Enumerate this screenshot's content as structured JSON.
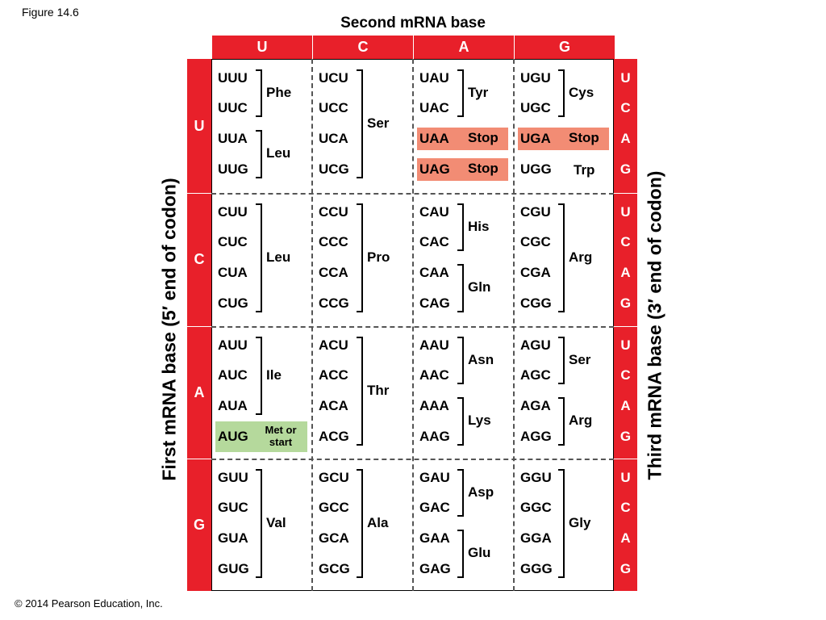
{
  "figure_label": "Figure 14.6",
  "second_title": "Second mRNA base",
  "first_title": "First mRNA base  (5′ end of codon)",
  "third_title": "Third mRNA base  (3′ end of codon)",
  "copyright": "© 2014 Pearson Education, Inc.",
  "bases": [
    "U",
    "C",
    "A",
    "G"
  ],
  "colors": {
    "header_red": "#e8202a",
    "stop_highlight": "#f28c74",
    "start_highlight": "#b5d99c"
  },
  "blocks": [
    {
      "codons": [
        [
          "UUU",
          "UUC",
          "UUA",
          "UUG"
        ],
        [
          "UCU",
          "UCC",
          "UCA",
          "UCG"
        ],
        [
          "UAU",
          "UAC",
          "UAA",
          "UAG"
        ],
        [
          "UGU",
          "UGC",
          "UGA",
          "UGG"
        ]
      ],
      "labels": [
        [
          {
            "text": "Phe",
            "span": [
              0,
              1
            ]
          },
          {
            "text": "Leu",
            "span": [
              2,
              3
            ]
          }
        ],
        [
          {
            "text": "Ser",
            "span": [
              0,
              3
            ]
          }
        ],
        [
          {
            "text": "Tyr",
            "span": [
              0,
              1
            ]
          },
          {
            "text": "Stop",
            "row": 2,
            "inline": true
          },
          {
            "text": "Stop",
            "row": 3,
            "inline": true
          }
        ],
        [
          {
            "text": "Cys",
            "span": [
              0,
              1
            ]
          },
          {
            "text": "Stop",
            "row": 2,
            "inline": true
          },
          {
            "text": "Trp",
            "row": 3,
            "inline": true
          }
        ]
      ]
    },
    {
      "codons": [
        [
          "CUU",
          "CUC",
          "CUA",
          "CUG"
        ],
        [
          "CCU",
          "CCC",
          "CCA",
          "CCG"
        ],
        [
          "CAU",
          "CAC",
          "CAA",
          "CAG"
        ],
        [
          "CGU",
          "CGC",
          "CGA",
          "CGG"
        ]
      ],
      "labels": [
        [
          {
            "text": "Leu",
            "span": [
              0,
              3
            ]
          }
        ],
        [
          {
            "text": "Pro",
            "span": [
              0,
              3
            ]
          }
        ],
        [
          {
            "text": "His",
            "span": [
              0,
              1
            ]
          },
          {
            "text": "Gln",
            "span": [
              2,
              3
            ]
          }
        ],
        [
          {
            "text": "Arg",
            "span": [
              0,
              3
            ]
          }
        ]
      ]
    },
    {
      "codons": [
        [
          "AUU",
          "AUC",
          "AUA",
          "AUG"
        ],
        [
          "ACU",
          "ACC",
          "ACA",
          "ACG"
        ],
        [
          "AAU",
          "AAC",
          "AAA",
          "AAG"
        ],
        [
          "AGU",
          "AGC",
          "AGA",
          "AGG"
        ]
      ],
      "labels": [
        [
          {
            "text": "Ile",
            "span": [
              0,
              2
            ]
          },
          {
            "text": "Met or start",
            "row": 3,
            "inline": true
          }
        ],
        [
          {
            "text": "Thr",
            "span": [
              0,
              3
            ]
          }
        ],
        [
          {
            "text": "Asn",
            "span": [
              0,
              1
            ]
          },
          {
            "text": "Lys",
            "span": [
              2,
              3
            ]
          }
        ],
        [
          {
            "text": "Ser",
            "span": [
              0,
              1
            ]
          },
          {
            "text": "Arg",
            "span": [
              2,
              3
            ]
          }
        ]
      ]
    },
    {
      "codons": [
        [
          "GUU",
          "GUC",
          "GUA",
          "GUG"
        ],
        [
          "GCU",
          "GCC",
          "GCA",
          "GCG"
        ],
        [
          "GAU",
          "GAC",
          "GAA",
          "GAG"
        ],
        [
          "GGU",
          "GGC",
          "GGA",
          "GGG"
        ]
      ],
      "labels": [
        [
          {
            "text": "Val",
            "span": [
              0,
              3
            ]
          }
        ],
        [
          {
            "text": "Ala",
            "span": [
              0,
              3
            ]
          }
        ],
        [
          {
            "text": "Asp",
            "span": [
              0,
              1
            ]
          },
          {
            "text": "Glu",
            "span": [
              2,
              3
            ]
          }
        ],
        [
          {
            "text": "Gly",
            "span": [
              0,
              3
            ]
          }
        ]
      ]
    }
  ]
}
